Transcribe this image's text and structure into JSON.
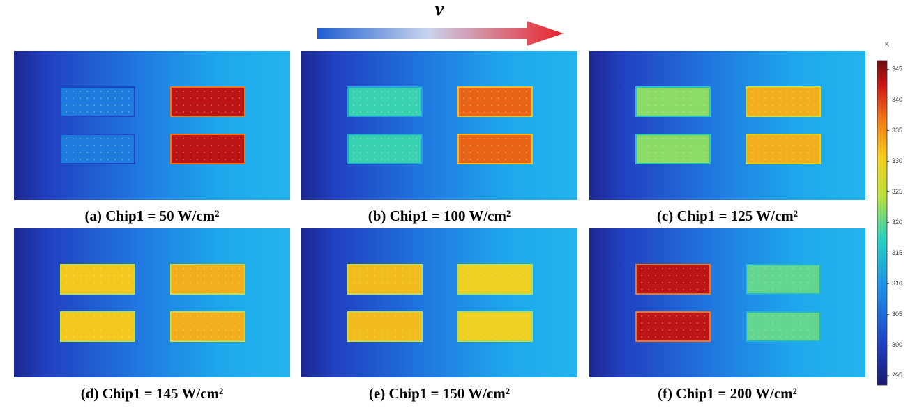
{
  "header": {
    "velocity_label": "v"
  },
  "panels": [
    {
      "caption": "(a) Chip1 = 50 W/cm²",
      "chip_temps": [
        307,
        343
      ]
    },
    {
      "caption": "(b) Chip1 = 100 W/cm²",
      "chip_temps": [
        318,
        338
      ]
    },
    {
      "caption": "(c) Chip1 = 125 W/cm²",
      "chip_temps": [
        322,
        333
      ]
    },
    {
      "caption": "(d) Chip1 = 145 W/cm²",
      "chip_temps": [
        331,
        333
      ]
    },
    {
      "caption": "(e) Chip1 = 150 W/cm²",
      "chip_temps": [
        332,
        330
      ]
    },
    {
      "caption": "(f) Chip1 = 200 W/cm²",
      "chip_temps": [
        343,
        320
      ]
    }
  ],
  "colorbar": {
    "unit": "K",
    "lim": [
      293.5,
      346.4
    ],
    "ticks": [
      295,
      300,
      305,
      310,
      315,
      320,
      325,
      330,
      335,
      340,
      345
    ]
  }
}
